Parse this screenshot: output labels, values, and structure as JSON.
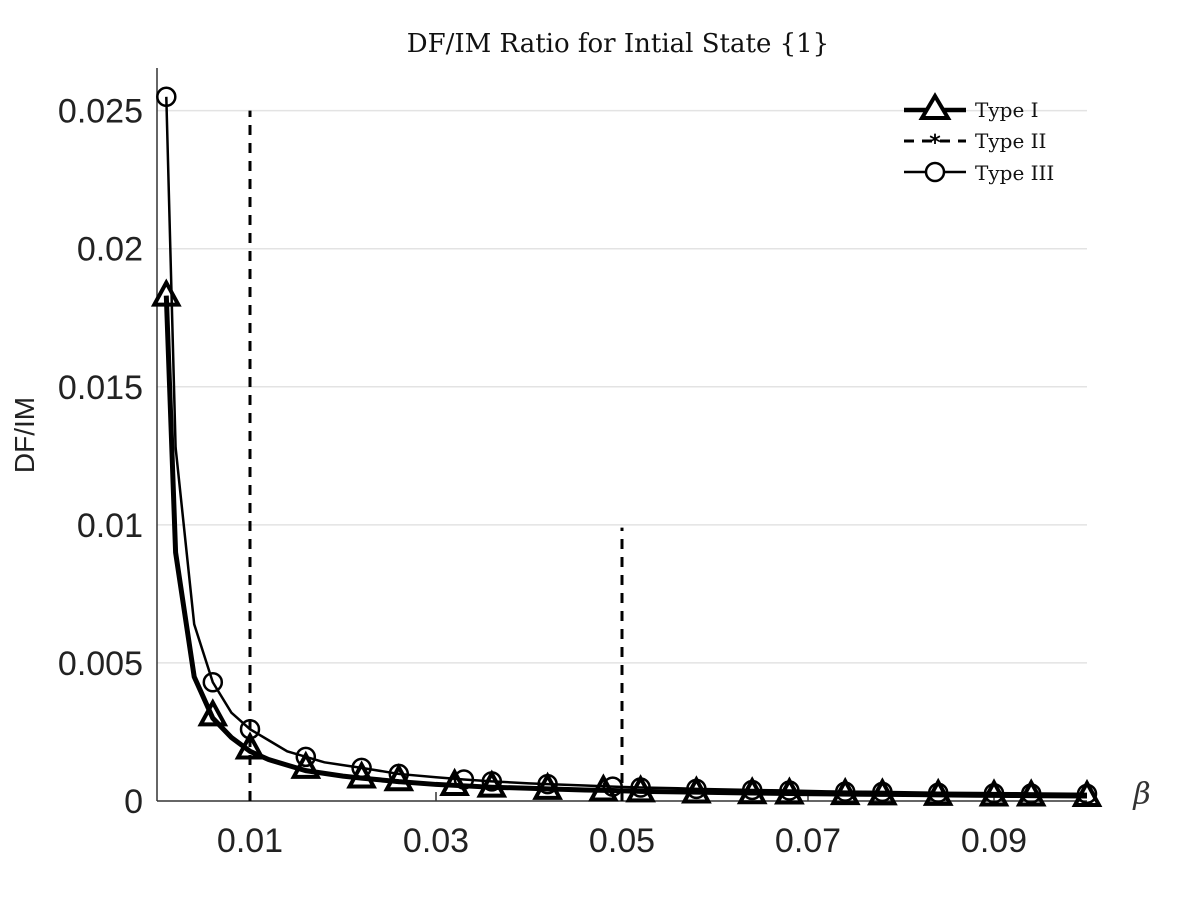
{
  "chart_data": {
    "type": "line",
    "title": "DF/IM Ratio for Intial State {1}",
    "xlabel": "β",
    "ylabel": "DF/IM",
    "xlim": [
      0,
      0.1
    ],
    "ylim": [
      0,
      0.026
    ],
    "xticks": [
      0.01,
      0.03,
      0.05,
      0.07,
      0.09
    ],
    "xtick_labels": [
      "0.01",
      "0.03",
      "0.05",
      "0.07",
      "0.09"
    ],
    "yticks": [
      0,
      0.005,
      0.01,
      0.015,
      0.02,
      0.025
    ],
    "ytick_labels": [
      "0",
      "0.005",
      "0.01",
      "0.015",
      "0.02",
      "0.025"
    ],
    "grid": "horizontal",
    "legend_position": "top-right",
    "series": [
      {
        "name": "Type I",
        "style": "thick-solid",
        "marker": "triangle",
        "x": [
          0.001,
          0.002,
          0.004,
          0.006,
          0.008,
          0.01,
          0.012,
          0.014,
          0.016,
          0.018,
          0.02,
          0.022,
          0.026,
          0.03,
          0.033,
          0.036,
          0.04,
          0.042,
          0.046,
          0.049,
          0.052,
          0.056,
          0.058,
          0.062,
          0.064,
          0.068,
          0.072,
          0.074,
          0.078,
          0.082,
          0.084,
          0.088,
          0.092,
          0.095,
          0.1
        ],
        "y": [
          0.0183,
          0.009,
          0.0045,
          0.003,
          0.0023,
          0.0018,
          0.0015,
          0.0013,
          0.0011,
          0.001,
          0.0009,
          0.00083,
          0.0007,
          0.0006,
          0.00055,
          0.0005,
          0.00046,
          0.00044,
          0.0004,
          0.00038,
          0.00035,
          0.00033,
          0.00032,
          0.0003,
          0.00029,
          0.00027,
          0.00026,
          0.00025,
          0.00024,
          0.00023,
          0.00022,
          0.00021,
          0.0002,
          0.00019,
          0.00018
        ],
        "marker_x": [
          0.001,
          0.006,
          0.01,
          0.016,
          0.022,
          0.026,
          0.032,
          0.036,
          0.042,
          0.048,
          0.052,
          0.058,
          0.064,
          0.068,
          0.074,
          0.078,
          0.084,
          0.09,
          0.094,
          0.1
        ],
        "marker_y": [
          0.0183,
          0.0031,
          0.0019,
          0.0012,
          0.00085,
          0.00075,
          0.00058,
          0.00052,
          0.00044,
          0.00038,
          0.00035,
          0.00031,
          0.00028,
          0.00027,
          0.00025,
          0.00024,
          0.00022,
          0.0002,
          0.0002,
          0.00018
        ]
      },
      {
        "name": "Type II",
        "style": "dashed",
        "marker": "asterisk",
        "segments": [
          {
            "x": [
              0.01,
              0.01
            ],
            "y": [
              0,
              0.025
            ]
          },
          {
            "x": [
              0.05,
              0.05
            ],
            "y": [
              0,
              0.0099
            ]
          }
        ]
      },
      {
        "name": "Type III",
        "style": "thin-solid",
        "marker": "circle",
        "x": [
          0.001,
          0.002,
          0.004,
          0.006,
          0.008,
          0.01,
          0.012,
          0.014,
          0.016,
          0.018,
          0.02,
          0.022,
          0.026,
          0.03,
          0.033,
          0.036,
          0.04,
          0.042,
          0.046,
          0.049,
          0.052,
          0.056,
          0.058,
          0.062,
          0.064,
          0.068,
          0.072,
          0.074,
          0.078,
          0.082,
          0.084,
          0.088,
          0.092,
          0.095,
          0.1
        ],
        "y": [
          0.0255,
          0.0128,
          0.0064,
          0.0043,
          0.0032,
          0.0026,
          0.0022,
          0.0018,
          0.0016,
          0.0014,
          0.0013,
          0.0012,
          0.00098,
          0.00086,
          0.00078,
          0.00071,
          0.00064,
          0.00061,
          0.00056,
          0.00052,
          0.00049,
          0.00046,
          0.00044,
          0.00041,
          0.0004,
          0.00038,
          0.00035,
          0.00034,
          0.00033,
          0.00031,
          0.0003,
          0.00029,
          0.00028,
          0.00027,
          0.00026
        ],
        "marker_x": [
          0.001,
          0.006,
          0.01,
          0.016,
          0.022,
          0.026,
          0.033,
          0.036,
          0.042,
          0.049,
          0.052,
          0.058,
          0.064,
          0.068,
          0.074,
          0.078,
          0.084,
          0.09,
          0.094,
          0.1
        ],
        "marker_y": [
          0.0255,
          0.0043,
          0.0026,
          0.0016,
          0.0012,
          0.00098,
          0.00078,
          0.00071,
          0.00061,
          0.00052,
          0.00049,
          0.00044,
          0.0004,
          0.00038,
          0.00034,
          0.00033,
          0.0003,
          0.00028,
          0.00027,
          0.00026
        ]
      }
    ]
  }
}
